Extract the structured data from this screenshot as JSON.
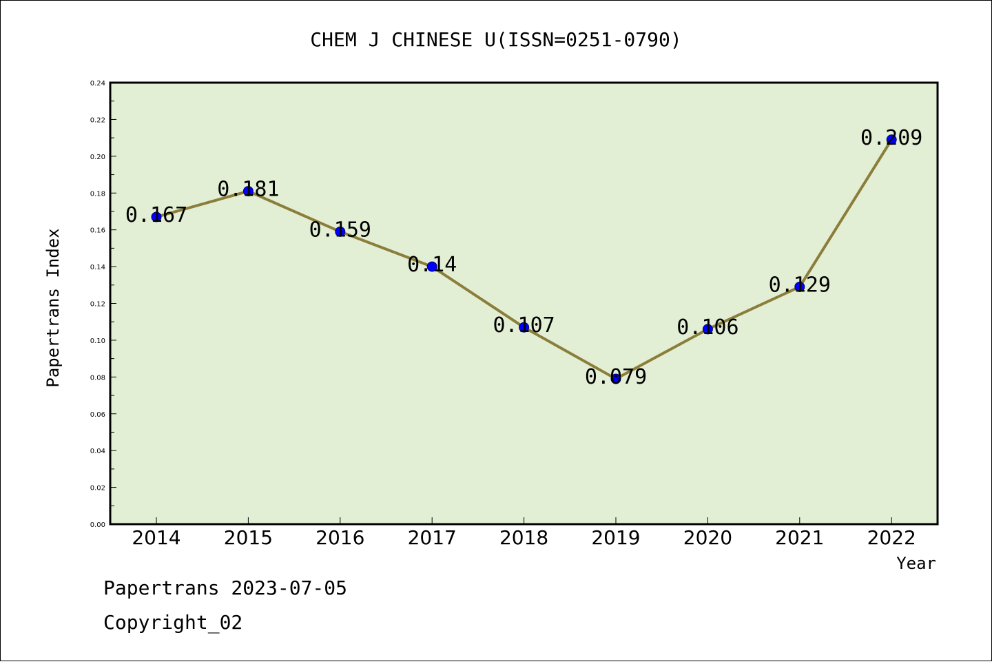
{
  "chart_data": {
    "type": "line",
    "title": "CHEM J CHINESE U(ISSN=0251-0790)",
    "xlabel": "Year",
    "ylabel": "Papertrans Index",
    "categories": [
      "2014",
      "2015",
      "2016",
      "2017",
      "2018",
      "2019",
      "2020",
      "2021",
      "2022"
    ],
    "series": [
      {
        "values": [
          0.167,
          0.181,
          0.159,
          0.14,
          0.107,
          0.079,
          0.106,
          0.129,
          0.209
        ]
      }
    ],
    "data_labels": [
      "0.167",
      "0.181",
      "0.159",
      "0.14",
      "0.107",
      "0.079",
      "0.106",
      "0.129",
      "0.209"
    ],
    "ylim": [
      0,
      0.24
    ],
    "yticks": [
      "0.00",
      "0.02",
      "0.04",
      "0.06",
      "0.08",
      "0.10",
      "0.12",
      "0.14",
      "0.16",
      "0.18",
      "0.20",
      "0.22",
      "0.24"
    ],
    "grid": false,
    "legend": "none",
    "colors": {
      "plot_background": "#e2efd5",
      "line": "#8b7d3a",
      "marker": "#0000ff"
    }
  },
  "footer": {
    "line1": "Papertrans 2023-07-05",
    "line2": "Copyright_02"
  }
}
